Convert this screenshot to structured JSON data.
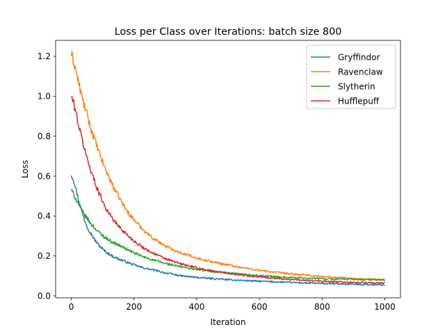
{
  "chart_data": {
    "type": "line",
    "title": "Loss per Class over Iterations: batch size 800",
    "xlabel": "Iteration",
    "ylabel": "Loss",
    "xlim": [
      -50,
      1050
    ],
    "ylim": [
      -0.01,
      1.28
    ],
    "xticks": [
      0,
      200,
      400,
      600,
      800,
      1000
    ],
    "yticks": [
      0.0,
      0.2,
      0.4,
      0.6,
      0.8,
      1.0,
      1.2
    ],
    "xtick_labels": [
      "0",
      "200",
      "400",
      "600",
      "800",
      "1000"
    ],
    "ytick_labels": [
      "0.0",
      "0.2",
      "0.4",
      "0.6",
      "0.8",
      "1.0",
      "1.2"
    ],
    "grid": false,
    "legend_position": "top-right",
    "series": [
      {
        "name": "Gryffindor",
        "color": "#1f77b4",
        "x": [
          0,
          10,
          20,
          30,
          40,
          50,
          60,
          75,
          90,
          110,
          130,
          150,
          175,
          200,
          230,
          260,
          300,
          350,
          400,
          450,
          500,
          550,
          600,
          650,
          700,
          750,
          800,
          850,
          900,
          950,
          1000
        ],
        "y": [
          0.61,
          0.57,
          0.5,
          0.44,
          0.39,
          0.35,
          0.32,
          0.28,
          0.25,
          0.22,
          0.2,
          0.185,
          0.17,
          0.155,
          0.14,
          0.13,
          0.115,
          0.1,
          0.092,
          0.086,
          0.081,
          0.077,
          0.073,
          0.07,
          0.067,
          0.064,
          0.062,
          0.06,
          0.058,
          0.056,
          0.055
        ]
      },
      {
        "name": "Ravenclaw",
        "color": "#ff7f0e",
        "x": [
          0,
          10,
          20,
          30,
          40,
          50,
          60,
          75,
          90,
          110,
          130,
          150,
          175,
          200,
          230,
          260,
          300,
          350,
          400,
          450,
          500,
          550,
          600,
          650,
          700,
          750,
          800,
          850,
          900,
          950,
          1000
        ],
        "y": [
          1.21,
          1.16,
          1.09,
          1.02,
          0.96,
          0.91,
          0.85,
          0.78,
          0.71,
          0.63,
          0.56,
          0.5,
          0.43,
          0.38,
          0.33,
          0.29,
          0.25,
          0.215,
          0.19,
          0.17,
          0.155,
          0.14,
          0.128,
          0.118,
          0.11,
          0.103,
          0.097,
          0.092,
          0.087,
          0.083,
          0.08
        ]
      },
      {
        "name": "Slytherin",
        "color": "#2ca02c",
        "x": [
          0,
          10,
          20,
          30,
          40,
          50,
          60,
          75,
          90,
          110,
          130,
          150,
          175,
          200,
          230,
          260,
          300,
          350,
          400,
          450,
          500,
          550,
          600,
          650,
          700,
          750,
          800,
          850,
          900,
          950,
          1000
        ],
        "y": [
          0.53,
          0.5,
          0.47,
          0.44,
          0.41,
          0.39,
          0.365,
          0.34,
          0.315,
          0.29,
          0.27,
          0.255,
          0.235,
          0.215,
          0.195,
          0.18,
          0.162,
          0.145,
          0.132,
          0.122,
          0.114,
          0.107,
          0.101,
          0.096,
          0.092,
          0.089,
          0.086,
          0.084,
          0.082,
          0.081,
          0.08
        ]
      },
      {
        "name": "Hufflepuff",
        "color": "#d62728",
        "x": [
          0,
          10,
          20,
          30,
          40,
          50,
          60,
          75,
          90,
          110,
          130,
          150,
          175,
          200,
          230,
          260,
          300,
          350,
          400,
          450,
          500,
          550,
          600,
          650,
          700,
          750,
          800,
          850,
          900,
          950,
          1000
        ],
        "y": [
          1.0,
          0.95,
          0.88,
          0.81,
          0.75,
          0.69,
          0.64,
          0.57,
          0.51,
          0.44,
          0.39,
          0.35,
          0.31,
          0.275,
          0.24,
          0.215,
          0.185,
          0.16,
          0.14,
          0.125,
          0.113,
          0.103,
          0.095,
          0.088,
          0.082,
          0.077,
          0.073,
          0.07,
          0.067,
          0.065,
          0.063
        ]
      }
    ]
  }
}
